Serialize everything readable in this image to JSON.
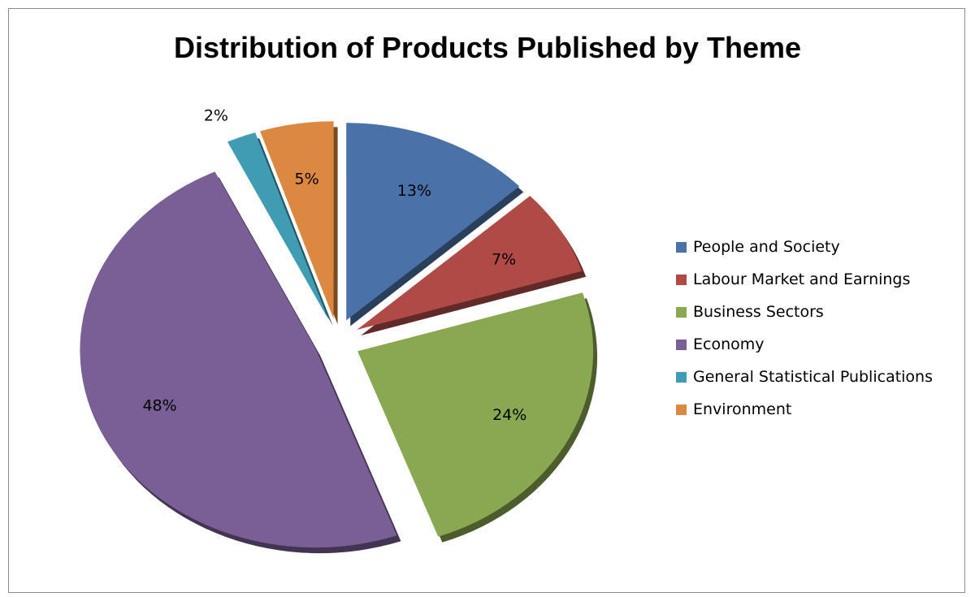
{
  "chart_data": {
    "type": "pie",
    "title": "Distribution of Products Published by Theme",
    "categories": [
      "People and Society",
      "Labour Market and Earnings",
      "Business Sectors",
      "Economy",
      "General Statistical Publications",
      "Environment"
    ],
    "values": [
      13,
      7,
      24,
      48,
      2,
      5
    ],
    "labels": [
      "13%",
      "7%",
      "24%",
      "48%",
      "2%",
      "5%"
    ],
    "colors": [
      "#4a72a8",
      "#b04a47",
      "#8aa851",
      "#7a5f96",
      "#3f9cb3",
      "#dc8840"
    ],
    "exploded": true,
    "legend_position": "right"
  }
}
